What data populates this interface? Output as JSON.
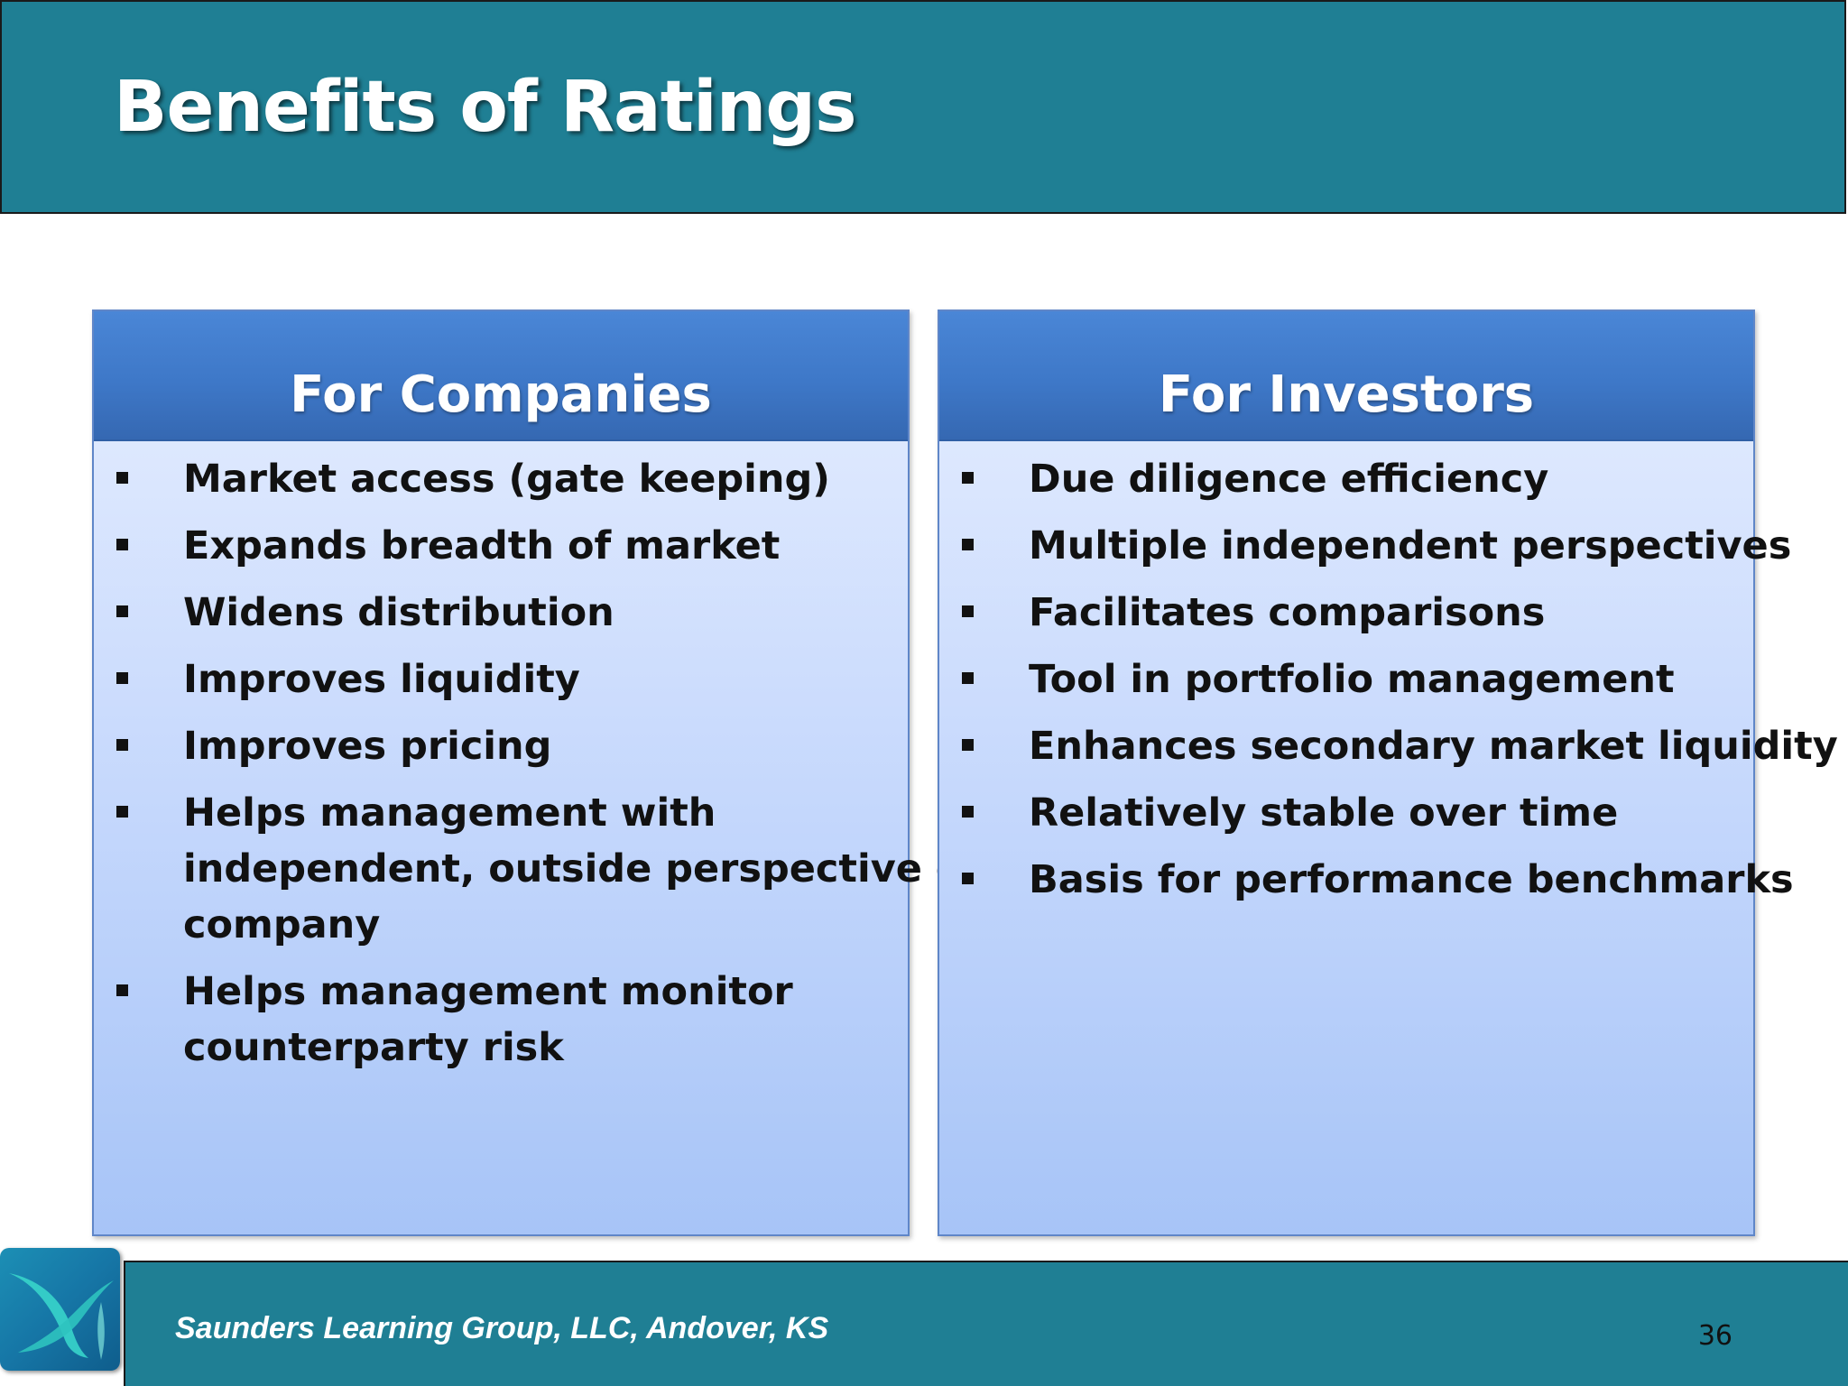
{
  "slide": {
    "title": "Benefits of Ratings",
    "footer_text": "Saunders Learning Group, LLC, Andover, KS",
    "page_number": "36",
    "logo_icon": "swoosh-logo-icon"
  },
  "panels": {
    "companies": {
      "title": "For Companies",
      "items": [
        [
          "Market access (gate keeping)"
        ],
        [
          "Expands breadth of market"
        ],
        [
          "Widens distribution"
        ],
        [
          "Improves liquidity"
        ],
        [
          "Improves pricing"
        ],
        [
          "Helps management with",
          "independent, outside perspective on",
          "company"
        ],
        [
          "Helps management monitor",
          "counterparty risk"
        ]
      ]
    },
    "investors": {
      "title": "For Investors",
      "items": [
        [
          "Due diligence efficiency"
        ],
        [
          "Multiple independent perspectives"
        ],
        [
          "Facilitates comparisons"
        ],
        [
          "Tool in portfolio management"
        ],
        [
          "Enhances secondary market liquidity"
        ],
        [
          "Relatively stable over time"
        ],
        [
          "Basis for performance benchmarks"
        ]
      ]
    }
  },
  "colors": {
    "header_teal": "#1f7f94",
    "panel_header_blue": "#3e78c8",
    "panel_body_light_blue": "#cadbfd"
  }
}
